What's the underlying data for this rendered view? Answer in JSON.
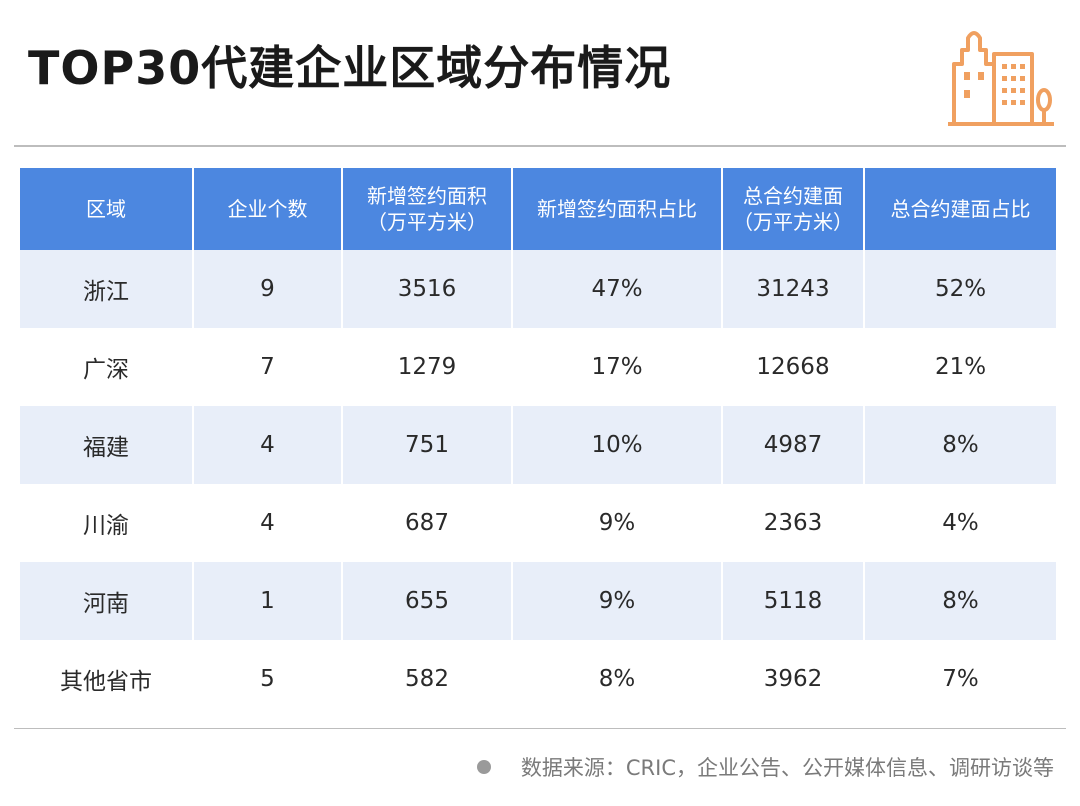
{
  "title": "TOP30代建企业区域分布情况",
  "logo": {
    "icon": "city-buildings-icon",
    "color": "#f0a060"
  },
  "table": {
    "header_color": "#4c87e0",
    "row_shade_color": "#e8eef9",
    "columns": [
      {
        "line1": "区域",
        "line2": ""
      },
      {
        "line1": "企业个数",
        "line2": ""
      },
      {
        "line1": "新增签约面积",
        "line2": "（万平方米）"
      },
      {
        "line1": "新增签约面积占比",
        "line2": ""
      },
      {
        "line1": "总合约建面",
        "line2": "（万平方米）"
      },
      {
        "line1": "总合约建面占比",
        "line2": ""
      }
    ],
    "rows": [
      [
        "浙江",
        "9",
        "3516",
        "47%",
        "31243",
        "52%"
      ],
      [
        "广深",
        "7",
        "1279",
        "17%",
        "12668",
        "21%"
      ],
      [
        "福建",
        "4",
        "751",
        "10%",
        "4987",
        "8%"
      ],
      [
        "川渝",
        "4",
        "687",
        "9%",
        "2363",
        "4%"
      ],
      [
        "河南",
        "1",
        "655",
        "9%",
        "5118",
        "8%"
      ],
      [
        "其他省市",
        "5",
        "582",
        "8%",
        "3962",
        "7%"
      ]
    ]
  },
  "source": "数据来源：CRIC，企业公告、公开媒体信息、调研访谈等"
}
